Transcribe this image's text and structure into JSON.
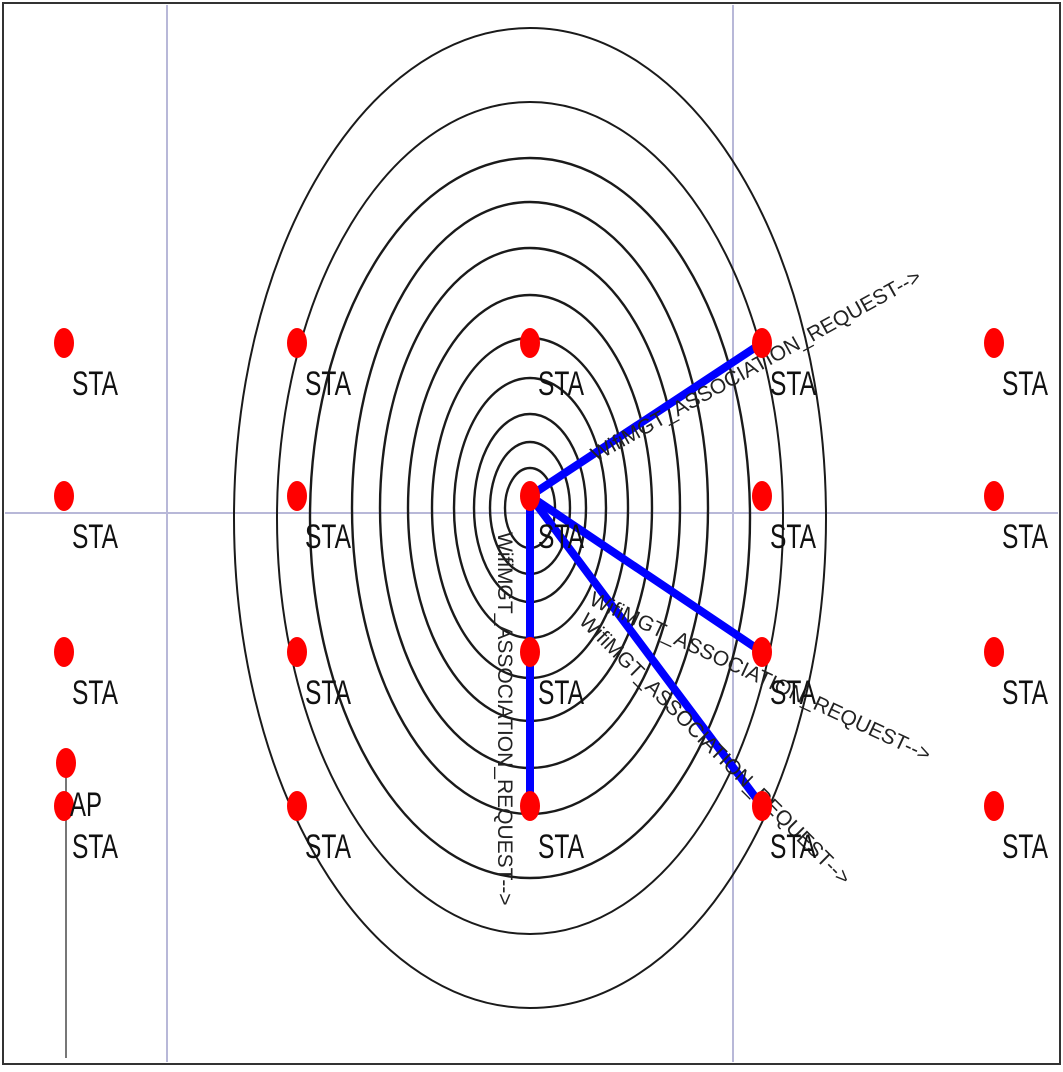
{
  "colors": {
    "background": "#ffffff",
    "gridline": "#b8b8d8",
    "node": "#ff0000",
    "link": "#0000ff",
    "ring": "#1a1a1a",
    "text": "#111111"
  },
  "nodes": [
    {
      "id": "r1c1",
      "label": "STA"
    },
    {
      "id": "r1c2",
      "label": "STA"
    },
    {
      "id": "r1c3",
      "label": "STA"
    },
    {
      "id": "r1c4",
      "label": "STA"
    },
    {
      "id": "r1c5",
      "label": "STA"
    },
    {
      "id": "r2c1",
      "label": "STA"
    },
    {
      "id": "r2c2",
      "label": "STA"
    },
    {
      "id": "r2c3",
      "label": "STA"
    },
    {
      "id": "r2c4",
      "label": "STA"
    },
    {
      "id": "r2c5",
      "label": "STA"
    },
    {
      "id": "r3c1",
      "label": "STA"
    },
    {
      "id": "r3c2",
      "label": "STA"
    },
    {
      "id": "r3c3",
      "label": "STA"
    },
    {
      "id": "r3c4",
      "label": "STA"
    },
    {
      "id": "r3c5",
      "label": "STA"
    },
    {
      "id": "r4c1",
      "label": "STA"
    },
    {
      "id": "r4c2",
      "label": "STA"
    },
    {
      "id": "r4c3",
      "label": "STA"
    },
    {
      "id": "r4c4",
      "label": "STA"
    },
    {
      "id": "r4c5",
      "label": "STA"
    },
    {
      "id": "ap",
      "label": "AP"
    }
  ],
  "links": [
    {
      "from": "r2c3",
      "to": "r1c4",
      "label": "WifiMGT_ASSOCIATION_REQUEST-->"
    },
    {
      "from": "r2c3",
      "to": "r3c4",
      "label": "WifiMGT_ASSOCIATION_REQUEST-->"
    },
    {
      "from": "r2c3",
      "to": "r4c4",
      "label": "WifiMGT_ASSOCIATION_REQUEST-->"
    },
    {
      "from": "r2c3",
      "to": "r4c3",
      "label": "WifiMGT_ASSOCIATION_REQUEST-->"
    }
  ]
}
